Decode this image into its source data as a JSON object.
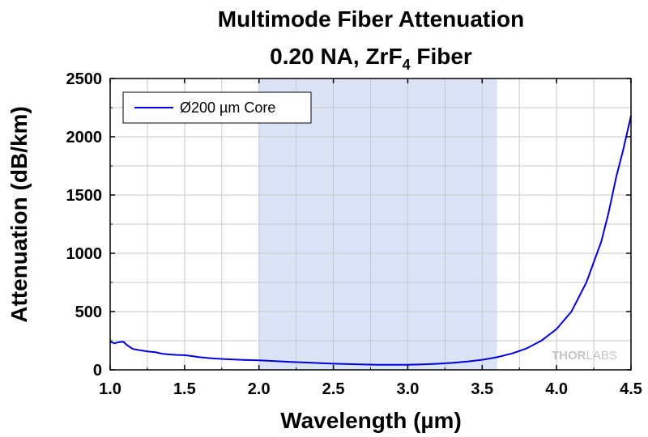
{
  "chart_data": {
    "type": "line",
    "title_line1": "Multimode Fiber Attenuation",
    "title_line2_prefix": "0.20 NA, ZrF",
    "title_line2_subscript": "4",
    "title_line2_suffix": " Fiber",
    "xlabel": "Wavelength (µm)",
    "ylabel": "Attenuation (dB/km)",
    "xlim": [
      1.0,
      4.5
    ],
    "ylim": [
      0,
      2500
    ],
    "x_ticks": [
      "1.0",
      "1.5",
      "2.0",
      "2.5",
      "3.0",
      "3.5",
      "4.0",
      "4.5"
    ],
    "y_ticks": [
      "0",
      "500",
      "1000",
      "1500",
      "2000",
      "2500"
    ],
    "grid": true,
    "legend_position": "top-left",
    "highlight_band": {
      "x_start": 2.0,
      "x_end": 3.6,
      "color": "#dbe4f6"
    },
    "watermark_a": "THOR",
    "watermark_b": "LABS",
    "series": [
      {
        "name": "Ø200 µm Core",
        "color": "#0000dd",
        "points": [
          [
            1.0,
            240
          ],
          [
            1.03,
            228
          ],
          [
            1.06,
            238
          ],
          [
            1.09,
            240
          ],
          [
            1.11,
            215
          ],
          [
            1.15,
            180
          ],
          [
            1.2,
            168
          ],
          [
            1.25,
            158
          ],
          [
            1.3,
            152
          ],
          [
            1.35,
            138
          ],
          [
            1.4,
            132
          ],
          [
            1.45,
            128
          ],
          [
            1.5,
            126
          ],
          [
            1.55,
            118
          ],
          [
            1.6,
            108
          ],
          [
            1.7,
            97
          ],
          [
            1.8,
            90
          ],
          [
            1.9,
            85
          ],
          [
            2.0,
            82
          ],
          [
            2.1,
            76
          ],
          [
            2.2,
            69
          ],
          [
            2.3,
            63
          ],
          [
            2.4,
            58
          ],
          [
            2.5,
            53
          ],
          [
            2.6,
            49
          ],
          [
            2.7,
            46
          ],
          [
            2.8,
            44
          ],
          [
            2.9,
            44
          ],
          [
            3.0,
            44
          ],
          [
            3.1,
            47
          ],
          [
            3.2,
            52
          ],
          [
            3.3,
            60
          ],
          [
            3.4,
            71
          ],
          [
            3.5,
            86
          ],
          [
            3.6,
            108
          ],
          [
            3.7,
            140
          ],
          [
            3.8,
            185
          ],
          [
            3.9,
            252
          ],
          [
            4.0,
            350
          ],
          [
            4.1,
            500
          ],
          [
            4.2,
            750
          ],
          [
            4.3,
            1100
          ],
          [
            4.35,
            1350
          ],
          [
            4.4,
            1650
          ],
          [
            4.45,
            1900
          ],
          [
            4.5,
            2180
          ]
        ]
      }
    ]
  }
}
